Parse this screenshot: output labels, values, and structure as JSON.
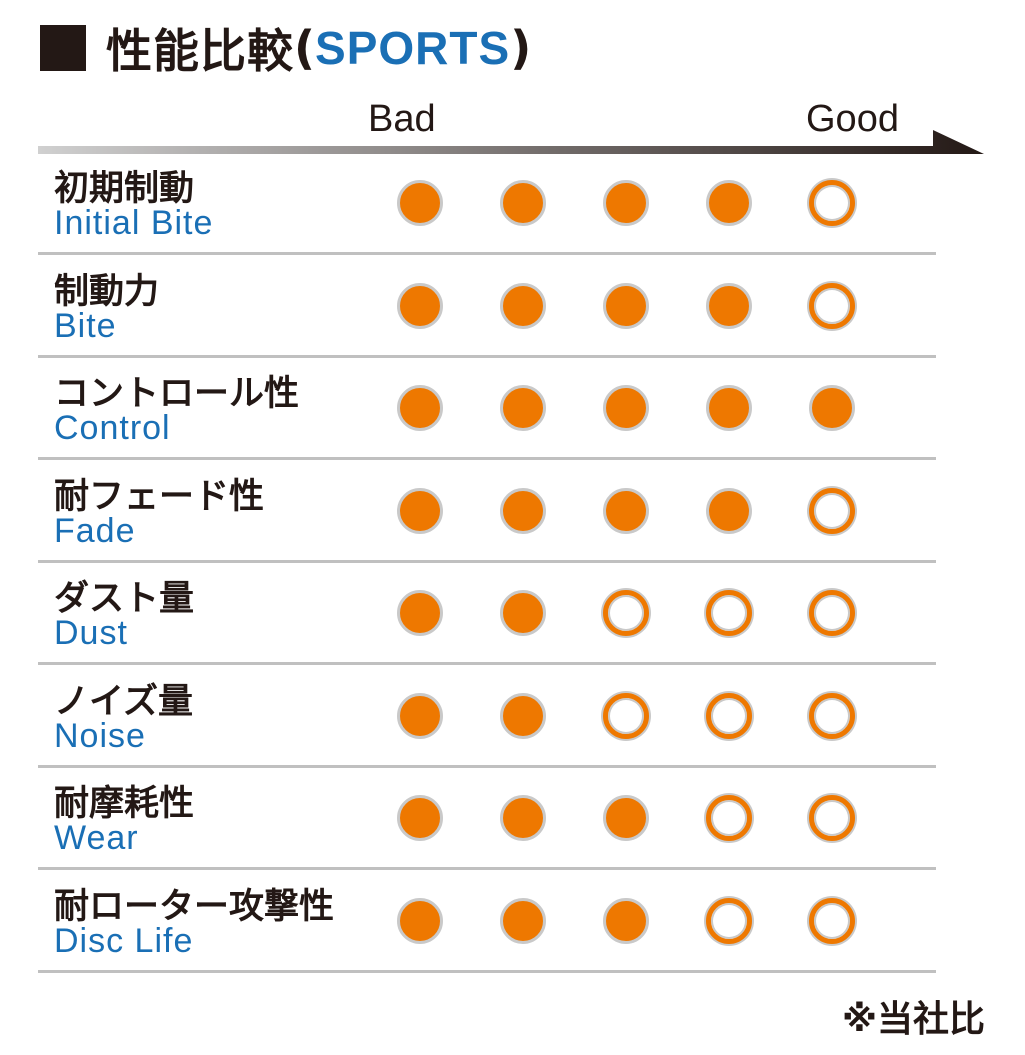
{
  "header": {
    "title_jp": "性能比較",
    "paren_open": "(",
    "title_en": "SPORTS",
    "paren_close": ")"
  },
  "scale": {
    "bad": "Bad",
    "good": "Good"
  },
  "colors": {
    "filled": "#ee7800",
    "label_en": "#1a6fb5",
    "text": "#231815",
    "divider": "#c0c0c0"
  },
  "chart_data": {
    "type": "table",
    "title": "性能比較(SPORTS)",
    "scale_min_label": "Bad",
    "scale_max_label": "Good",
    "max_score": 5,
    "rows": [
      {
        "jp": "初期制動",
        "en": "Initial Bite",
        "score": 4
      },
      {
        "jp": "制動力",
        "en": "Bite",
        "score": 4
      },
      {
        "jp": "コントロール性",
        "en": "Control",
        "score": 5
      },
      {
        "jp": "耐フェード性",
        "en": "Fade",
        "score": 4
      },
      {
        "jp": "ダスト量",
        "en": "Dust",
        "score": 2
      },
      {
        "jp": "ノイズ量",
        "en": "Noise",
        "score": 2
      },
      {
        "jp": "耐摩耗性",
        "en": "Wear",
        "score": 3
      },
      {
        "jp": "耐ローター攻撃性",
        "en": "Disc Life",
        "score": 3
      }
    ]
  },
  "footnote": "※当社比"
}
